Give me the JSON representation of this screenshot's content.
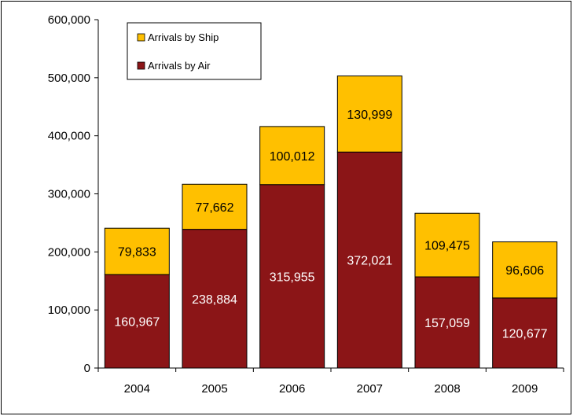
{
  "chart_data": {
    "type": "bar",
    "stacked": true,
    "categories": [
      "2004",
      "2005",
      "2006",
      "2007",
      "2008",
      "2009"
    ],
    "series": [
      {
        "name": "Arrivals by Air",
        "values": [
          160967,
          238884,
          315955,
          372021,
          157059,
          120677
        ],
        "color": "#8b1517",
        "label_color": "#ffffff"
      },
      {
        "name": "Arrivals by Ship",
        "values": [
          79833,
          77662,
          100012,
          130999,
          109475,
          96606
        ],
        "color": "#ffc000",
        "label_color": "#000000"
      }
    ],
    "data_labels": {
      "Arrivals by Air": [
        "160,967",
        "238,884",
        "315,955",
        "372,021",
        "157,059",
        "120,677"
      ],
      "Arrivals by Ship": [
        "79,833",
        "77,662",
        "100,012",
        "130,999",
        "109,475",
        "96,606"
      ]
    },
    "y_ticks": [
      0,
      100000,
      200000,
      300000,
      400000,
      500000,
      600000
    ],
    "y_tick_labels": [
      "0",
      "100,000",
      "200,000",
      "300,000",
      "400,000",
      "500,000",
      "600,000"
    ],
    "ylim": [
      0,
      600000
    ],
    "grid": false,
    "legend": {
      "placement": "top-left",
      "entries": [
        {
          "label": "Arrivals by Ship",
          "color": "#ffc000"
        },
        {
          "label": "Arrivals by Air",
          "color": "#8b1517"
        }
      ]
    },
    "title": "",
    "xlabel": "",
    "ylabel": ""
  }
}
